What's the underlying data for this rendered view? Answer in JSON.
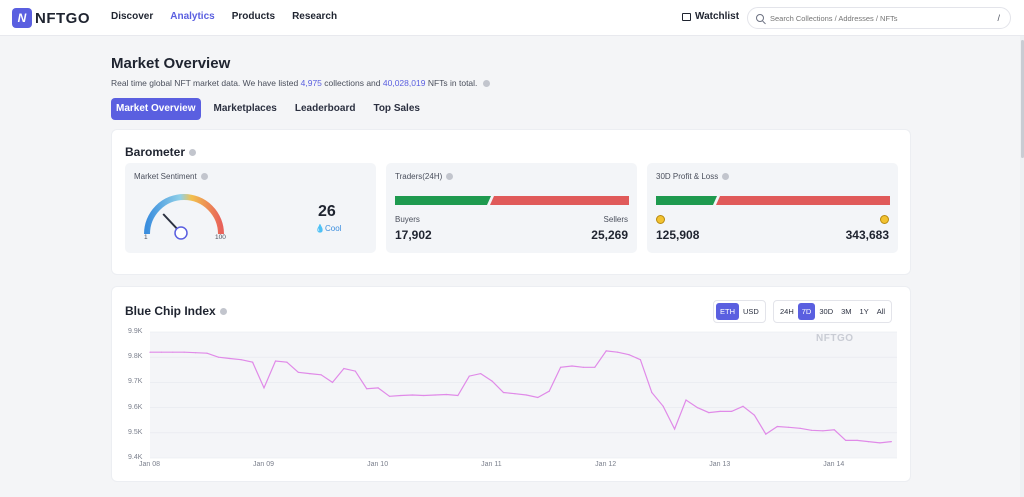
{
  "brand": {
    "logo_letter": "N",
    "name": "NFTGO"
  },
  "nav": {
    "items": [
      "Discover",
      "Analytics",
      "Products",
      "Research"
    ],
    "active": "Analytics"
  },
  "header": {
    "watchlist": "Watchlist",
    "search_placeholder": "Search Collections / Addresses / NFTs",
    "search_shortcut": "/"
  },
  "page": {
    "title": "Market Overview",
    "subtitle_before": "Real time global NFT market data. We have listed ",
    "collections_count": "4,975",
    "subtitle_middle": " collections and ",
    "nfts_count": "40,028,019",
    "subtitle_after": " NFTs in total."
  },
  "tabs": [
    "Market Overview",
    "Marketplaces",
    "Leaderboard",
    "Top Sales"
  ],
  "barometer": {
    "title": "Barometer",
    "sentiment": {
      "label": "Market Sentiment",
      "value": "26",
      "status": "Cool",
      "min": "1",
      "max": "100",
      "level": 0.26
    },
    "traders": {
      "label": "Traders(24H)",
      "buyers_label": "Buyers",
      "buyers": "17,902",
      "sellers_label": "Sellers",
      "sellers": "25,269"
    },
    "profit_loss": {
      "label": "30D Profit & Loss",
      "profit": "125,908",
      "loss": "343,683"
    },
    "colors": {
      "green": "#1e9a4f",
      "red": "#e05a5a"
    }
  },
  "bluechip": {
    "title": "Blue Chip Index",
    "currency": [
      "ETH",
      "USD"
    ],
    "currency_active": "ETH",
    "ranges": [
      "24H",
      "7D",
      "30D",
      "3M",
      "1Y",
      "All"
    ],
    "range_active": "7D",
    "watermark": "NFTGO"
  },
  "chart_data": {
    "type": "line",
    "title": "",
    "y_tick_labels": [
      "9.9K",
      "9.8K",
      "9.7K",
      "9.6K",
      "9.5K",
      "9.4K"
    ],
    "x_tick_labels": [
      "Jan 08",
      "Jan 09",
      "Jan 10",
      "Jan 11",
      "Jan 12",
      "Jan 13",
      "Jan 14"
    ],
    "ylim": [
      9400,
      9900
    ],
    "xlim": [
      0,
      6.55
    ],
    "line_color": "#e08ae8",
    "series": [
      {
        "x": [
          0,
          0.1,
          0.2,
          0.3,
          0.4,
          0.5,
          0.6,
          0.7,
          0.8,
          0.9,
          1.0,
          1.1,
          1.2,
          1.3,
          1.4,
          1.5,
          1.6,
          1.7,
          1.8,
          1.9,
          2.0,
          2.1,
          2.2,
          2.3,
          2.4,
          2.5,
          2.6,
          2.7,
          2.8,
          2.9,
          3.0,
          3.1,
          3.2,
          3.3,
          3.4,
          3.5,
          3.6,
          3.7,
          3.8,
          3.9,
          4.0,
          4.1,
          4.2,
          4.3,
          4.4,
          4.5,
          4.6,
          4.7,
          4.8,
          4.9,
          5.0,
          5.1,
          5.2,
          5.3,
          5.4,
          5.5,
          5.6,
          5.7,
          5.8,
          5.9,
          6.0,
          6.1,
          6.2,
          6.3,
          6.4,
          6.5
        ],
        "y": [
          9820,
          9820,
          9820,
          9820,
          9818,
          9816,
          9800,
          9795,
          9790,
          9780,
          9678,
          9785,
          9780,
          9740,
          9735,
          9730,
          9700,
          9755,
          9745,
          9675,
          9678,
          9645,
          9648,
          9650,
          9648,
          9650,
          9652,
          9648,
          9725,
          9735,
          9705,
          9660,
          9655,
          9650,
          9640,
          9665,
          9760,
          9765,
          9760,
          9760,
          9825,
          9820,
          9810,
          9790,
          9660,
          9605,
          9515,
          9630,
          9600,
          9580,
          9585,
          9585,
          9605,
          9570,
          9495,
          9525,
          9522,
          9518,
          9510,
          9508,
          9512,
          9470,
          9470,
          9465,
          9460,
          9465
        ]
      }
    ]
  }
}
